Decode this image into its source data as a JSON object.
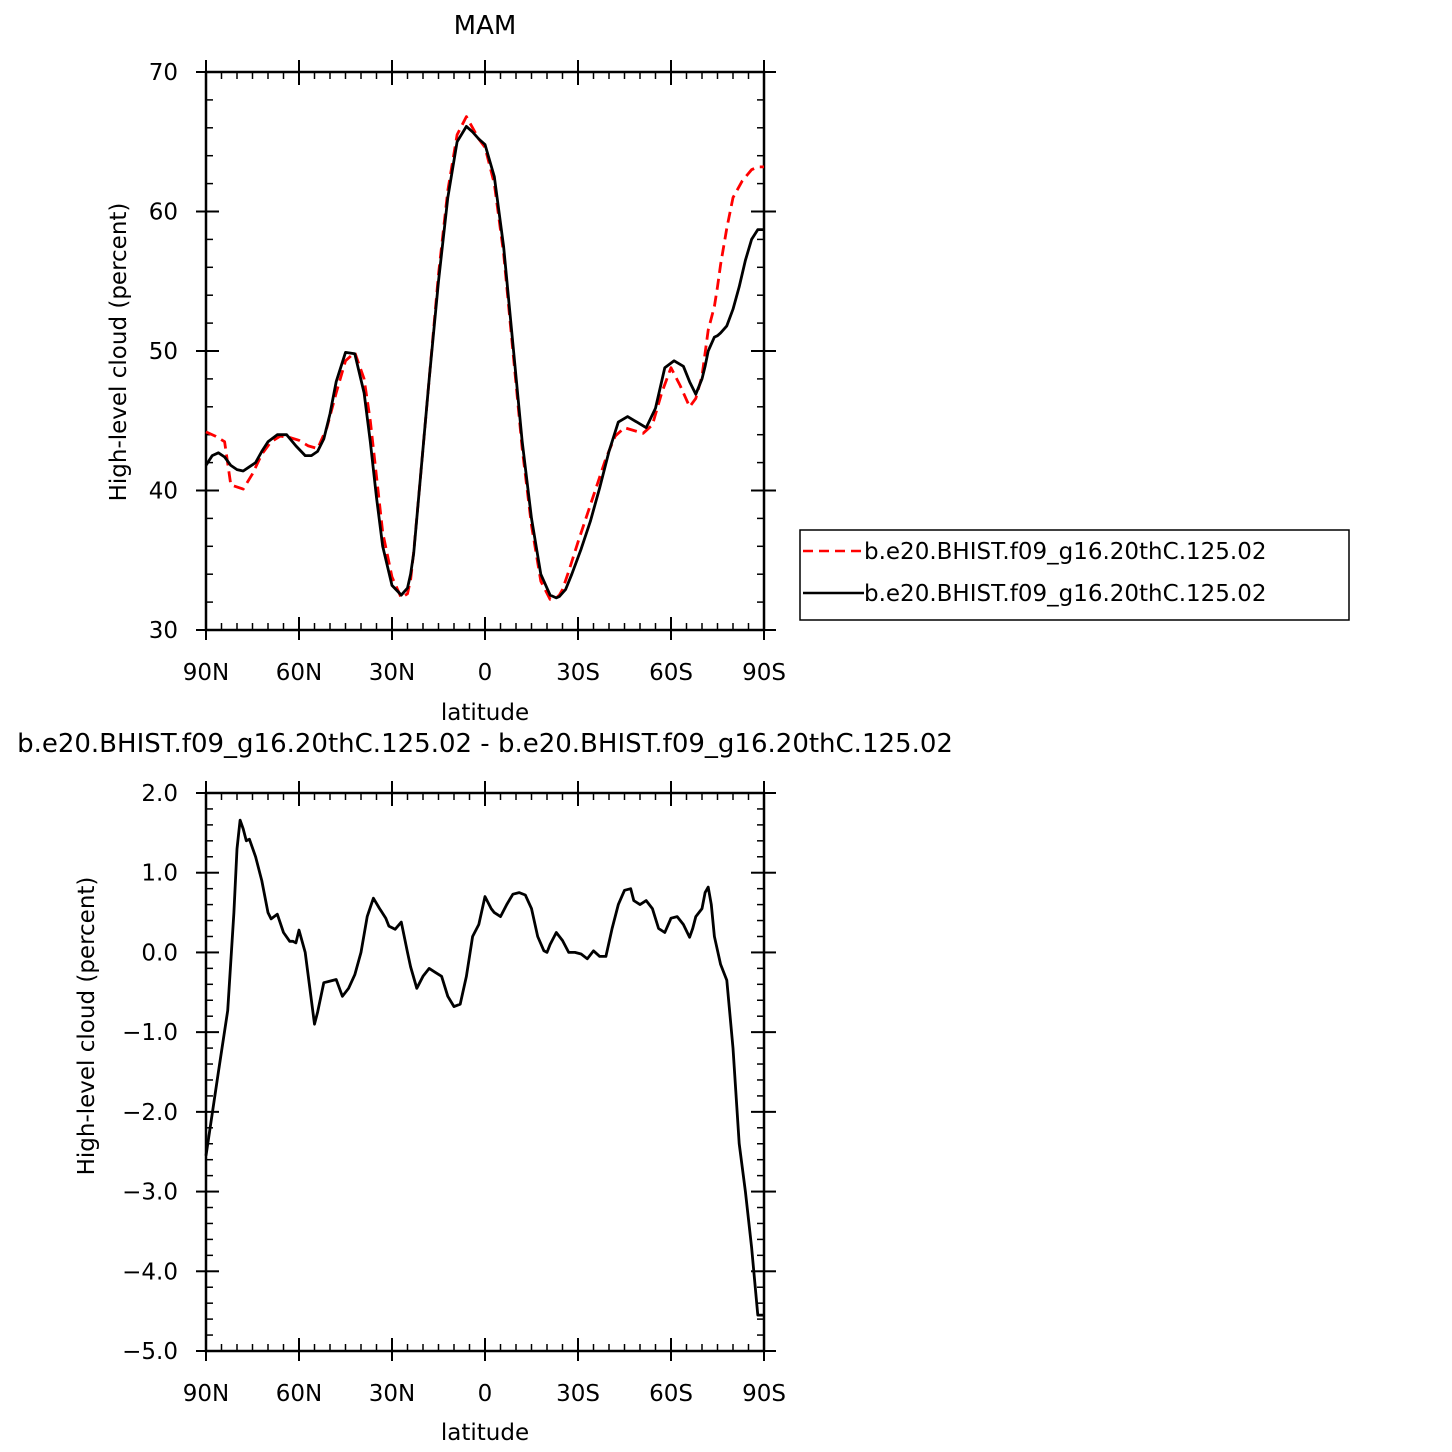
{
  "chart_data": [
    {
      "type": "line",
      "title": "MAM",
      "xlabel": "latitude",
      "ylabel": "High-level cloud (percent)",
      "x_ticks": [
        "90N",
        "60N",
        "30N",
        "0",
        "30S",
        "60S",
        "90S"
      ],
      "y_ticks": [
        "30",
        "40",
        "50",
        "60",
        "70"
      ],
      "xlim": [
        90,
        -90
      ],
      "ylim": [
        30,
        70
      ],
      "x_units": "degrees latitude (positive = N, negative = S)",
      "legend_position": "right",
      "series": [
        {
          "name": "b.e20.BHIST.f09_g16.20thC.125.02",
          "color": "#ff0000",
          "style": "dashed",
          "x": [
            90,
            87,
            84,
            82,
            78,
            75,
            72,
            69,
            66,
            63,
            60,
            57,
            54,
            51,
            48,
            45,
            42,
            39,
            37,
            35,
            33,
            30,
            27,
            25,
            24,
            23,
            21,
            18,
            15,
            12,
            9,
            6,
            4,
            2,
            0,
            -3,
            -6,
            -9,
            -12,
            -15,
            -18,
            -21,
            -23,
            -24,
            -25,
            -27,
            -30,
            -33,
            -36,
            -39,
            -42,
            -45,
            -48,
            -51,
            -54,
            -57,
            -60,
            -63,
            -66,
            -68,
            -70,
            -72,
            -74,
            -75,
            -76,
            -78,
            -80,
            -83,
            -86,
            -88,
            -90
          ],
          "y": [
            44.2,
            43.9,
            43.5,
            40.4,
            40.1,
            41.2,
            42.6,
            43.5,
            43.9,
            43.8,
            43.6,
            43.2,
            43.0,
            44.5,
            47.0,
            49.3,
            49.9,
            48.0,
            45.0,
            41.0,
            37.0,
            33.8,
            32.3,
            32.6,
            33.6,
            35.6,
            40.5,
            48.0,
            55.5,
            61.5,
            65.5,
            66.8,
            66.0,
            65.2,
            64.6,
            62.0,
            57.0,
            50.0,
            43.0,
            37.5,
            33.5,
            32.2,
            32.3,
            32.5,
            32.9,
            34.2,
            36.3,
            38.3,
            40.3,
            42.3,
            43.9,
            44.5,
            44.3,
            44.1,
            44.7,
            47.0,
            48.8,
            47.5,
            46.0,
            46.6,
            48.2,
            51.5,
            53.2,
            54.6,
            56.2,
            58.8,
            61.0,
            62.2,
            63.0,
            63.2,
            63.2
          ]
        },
        {
          "name": "b.e20.BHIST.f09_g16.20thC.125.02",
          "color": "#000000",
          "style": "solid",
          "x": [
            90,
            88,
            86,
            84,
            82,
            80,
            78,
            76,
            74,
            72,
            70,
            67,
            64,
            61,
            58,
            56,
            54,
            52,
            50,
            48,
            45,
            42,
            39,
            37,
            35,
            33,
            30,
            27,
            25,
            24,
            23,
            21,
            18,
            15,
            12,
            9,
            6,
            4,
            2,
            0,
            -3,
            -6,
            -9,
            -12,
            -15,
            -18,
            -21,
            -23,
            -24,
            -26,
            -28,
            -31,
            -34,
            -37,
            -40,
            -43,
            -46,
            -49,
            -52,
            -55,
            -58,
            -61,
            -64,
            -66,
            -68,
            -70,
            -71,
            -72,
            -74,
            -75,
            -76,
            -78,
            -80,
            -82,
            -84,
            -86,
            -88,
            -90
          ],
          "y": [
            41.8,
            42.5,
            42.7,
            42.4,
            41.8,
            41.5,
            41.4,
            41.7,
            42.0,
            42.8,
            43.5,
            44.0,
            44.0,
            43.2,
            42.5,
            42.5,
            42.8,
            43.7,
            45.5,
            47.8,
            49.9,
            49.8,
            47.0,
            43.5,
            39.5,
            36.0,
            33.2,
            32.5,
            33.0,
            34.0,
            35.5,
            40.5,
            48.0,
            55.0,
            61.0,
            65.0,
            66.1,
            65.7,
            65.2,
            64.8,
            62.5,
            57.5,
            50.5,
            43.5,
            38.0,
            34.0,
            32.5,
            32.3,
            32.4,
            32.9,
            34.0,
            35.8,
            37.8,
            40.2,
            42.8,
            44.9,
            45.3,
            44.9,
            44.5,
            45.9,
            48.8,
            49.3,
            48.9,
            47.8,
            46.9,
            48.0,
            48.9,
            50.0,
            51.0,
            51.1,
            51.3,
            51.8,
            53.0,
            54.6,
            56.5,
            58.0,
            58.7,
            58.7
          ]
        }
      ]
    },
    {
      "type": "line",
      "title": "b.e20.BHIST.f09_g16.20thC.125.02 - b.e20.BHIST.f09_g16.20thC.125.02",
      "xlabel": "latitude",
      "ylabel": "High-level cloud (percent)",
      "x_ticks": [
        "90N",
        "60N",
        "30N",
        "0",
        "30S",
        "60S",
        "90S"
      ],
      "y_ticks": [
        "-5.0",
        "-4.0",
        "-3.0",
        "-2.0",
        "-1.0",
        "0.0",
        "1.0",
        "2.0"
      ],
      "xlim": [
        90,
        -90
      ],
      "ylim": [
        -5,
        2
      ],
      "x_units": "degrees latitude (positive = N, negative = S)",
      "series": [
        {
          "name": "",
          "color": "#000000",
          "style": "solid",
          "x": [
            90,
            86,
            83,
            81,
            80,
            79,
            78,
            77,
            76,
            74,
            72,
            70,
            69,
            67,
            65,
            63,
            62,
            61,
            60,
            58,
            57,
            55,
            54,
            52,
            50,
            48,
            46,
            44,
            42,
            40,
            38,
            36,
            34,
            32,
            31,
            29,
            27,
            25,
            24,
            22,
            20,
            18,
            16,
            14,
            12,
            10,
            8,
            6,
            4,
            2,
            0,
            -2,
            -3,
            -5,
            -7,
            -9,
            -11,
            -13,
            -15,
            -17,
            -19,
            -20,
            -21,
            -23,
            -25,
            -27,
            -29,
            -31,
            -33,
            -35,
            -37,
            -39,
            -41,
            -43,
            -45,
            -47,
            -48,
            -50,
            -52,
            -54,
            -56,
            -58,
            -60,
            -62,
            -64,
            -66,
            -67,
            -68,
            -70,
            -71,
            -72,
            -73,
            -74,
            -76,
            -78,
            -80,
            -82,
            -84,
            -86,
            -88,
            -90
          ],
          "y": [
            -2.55,
            -1.5,
            -0.73,
            0.5,
            1.3,
            1.66,
            1.55,
            1.4,
            1.42,
            1.2,
            0.9,
            0.5,
            0.42,
            0.48,
            0.25,
            0.14,
            0.14,
            0.12,
            0.28,
            0.0,
            -0.3,
            -0.9,
            -0.75,
            -0.38,
            -0.36,
            -0.34,
            -0.55,
            -0.45,
            -0.28,
            0.0,
            0.45,
            0.68,
            0.55,
            0.43,
            0.33,
            0.29,
            0.38,
            0.0,
            -0.18,
            -0.45,
            -0.3,
            -0.2,
            -0.25,
            -0.3,
            -0.55,
            -0.68,
            -0.65,
            -0.3,
            0.2,
            0.35,
            0.7,
            0.55,
            0.5,
            0.45,
            0.6,
            0.73,
            0.75,
            0.72,
            0.55,
            0.2,
            0.02,
            0.0,
            0.1,
            0.25,
            0.15,
            0.0,
            0.0,
            -0.02,
            -0.08,
            0.02,
            -0.05,
            -0.05,
            0.3,
            0.6,
            0.78,
            0.8,
            0.65,
            0.6,
            0.65,
            0.55,
            0.3,
            0.25,
            0.43,
            0.45,
            0.35,
            0.19,
            0.3,
            0.45,
            0.55,
            0.75,
            0.82,
            0.6,
            0.2,
            -0.15,
            -0.35,
            -1.2,
            -2.4,
            -3.0,
            -3.7,
            -4.55,
            -4.55
          ]
        }
      ]
    }
  ]
}
